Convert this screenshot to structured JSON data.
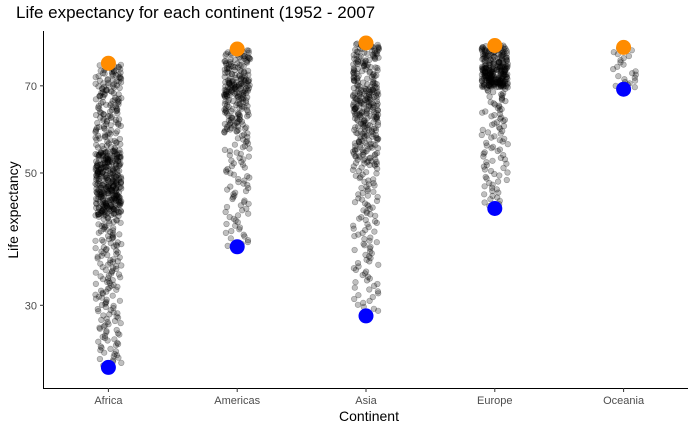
{
  "chart_data": {
    "type": "scatter",
    "title": "Life expectancy for each continent (1952 - 2007",
    "xlabel": "Continent",
    "ylabel": "Life expectancy",
    "categories": [
      "Africa",
      "Americas",
      "Asia",
      "Europe",
      "Oceania"
    ],
    "yscale": "log",
    "ylim": [
      21.8,
      86.5
    ],
    "yticks": [
      30,
      50,
      70
    ],
    "grid": false,
    "legend": "none",
    "series": [
      {
        "role": "observations",
        "color": "#000000",
        "opacity": 0.25,
        "groups": [
          {
            "category": "Africa",
            "count": 624,
            "min": 23.6,
            "q1": 42.4,
            "median": 47.8,
            "q3": 54.4,
            "max": 76.4
          },
          {
            "category": "Americas",
            "count": 300,
            "min": 37.6,
            "q1": 58.4,
            "median": 67.0,
            "q3": 71.7,
            "max": 80.7
          },
          {
            "category": "Asia",
            "count": 396,
            "min": 28.8,
            "q1": 51.4,
            "median": 61.8,
            "q3": 69.5,
            "max": 82.6
          },
          {
            "category": "Europe",
            "count": 360,
            "min": 43.6,
            "q1": 69.6,
            "median": 72.2,
            "q3": 75.5,
            "max": 81.8
          },
          {
            "category": "Oceania",
            "count": 24,
            "min": 69.1,
            "q1": 71.2,
            "median": 73.7,
            "q3": 77.6,
            "max": 81.2
          }
        ]
      },
      {
        "role": "maximum",
        "color": "#FF8C00",
        "values": [
          76.4,
          80.7,
          82.6,
          81.8,
          81.2
        ]
      },
      {
        "role": "minimum",
        "color": "#0000FF",
        "values": [
          23.6,
          37.6,
          28.8,
          43.6,
          69.1
        ]
      }
    ]
  }
}
